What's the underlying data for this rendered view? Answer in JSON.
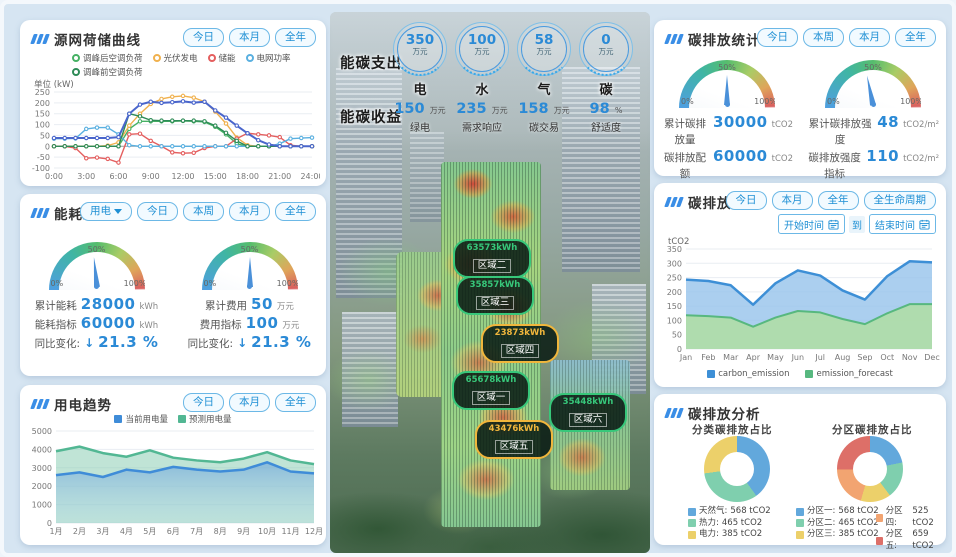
{
  "panels": {
    "curve": {
      "title": "源网荷储曲线",
      "buttons": [
        "今日",
        "本月",
        "全年"
      ],
      "unit_label": "单位 (kW)"
    },
    "energy": {
      "title": "能耗统计",
      "type_select": "用电",
      "buttons": [
        "今日",
        "本周",
        "本月",
        "全年"
      ],
      "gauges": [
        {
          "pct": 46.7,
          "g0": "0%",
          "g50": "50%",
          "g100": "100%",
          "rows": [
            {
              "label": "累计能耗",
              "value": "28000",
              "unit": "kWh"
            },
            {
              "label": "能耗指标",
              "value": "60000",
              "unit": "kWh"
            },
            {
              "label": "同比变化:",
              "value": "21.3 %",
              "arrow": "↓"
            }
          ]
        },
        {
          "pct": 50,
          "g0": "0%",
          "g50": "50%",
          "g100": "100%",
          "rows": [
            {
              "label": "累计费用",
              "value": "50",
              "unit": "万元"
            },
            {
              "label": "费用指标",
              "value": "100",
              "unit": "万元"
            },
            {
              "label": "同比变化:",
              "value": "21.3 %",
              "arrow": "↓"
            }
          ]
        }
      ]
    },
    "trend": {
      "title": "用电趋势",
      "buttons": [
        "今日",
        "本月",
        "全年"
      ]
    },
    "carbonStats": {
      "title": "碳排放统计",
      "buttons": [
        "今日",
        "本周",
        "本月",
        "全年"
      ],
      "gauges": [
        {
          "pct": 50,
          "g0": "0%",
          "g50": "50%",
          "g100": "100%",
          "rows": [
            {
              "label": "累计碳排放量",
              "value": "30000",
              "unit": "tCO2"
            },
            {
              "label": "碳排放配额",
              "value": "60000",
              "unit": "tCO2"
            },
            {
              "label": "同比变化:",
              "value": "21.3 %",
              "arrow": "↓"
            }
          ]
        },
        {
          "pct": 43.6,
          "g0": "0%",
          "g50": "50%",
          "g100": "100%",
          "rows": [
            {
              "label": "累计碳排放强度",
              "value": "48",
              "unit": "tCO2/m²"
            },
            {
              "label": "碳排放强度指标",
              "value": "110",
              "unit": "tCO2/m²"
            },
            {
              "label": "同比变化:",
              "value": "21.3 %",
              "arrow": "↓"
            }
          ]
        }
      ]
    },
    "carbonTrend": {
      "title": "碳排放趋势",
      "buttons": [
        "今日",
        "本月",
        "全年",
        "全生命周期"
      ],
      "start_placeholder": "开始时间",
      "to_label": "到",
      "end_placeholder": "结束时间",
      "ylabel": "tCO2"
    },
    "carbonAnalysis": {
      "title": "碳排放分析",
      "donuts": [
        {
          "title": "分类碳排放占比",
          "legend": [
            {
              "label": "天然气:",
              "value": "568 tCO2"
            },
            {
              "label": "热力:",
              "value": "465 tCO2"
            },
            {
              "label": "电力:",
              "value": "385 tCO2"
            }
          ]
        },
        {
          "title": "分区碳排放占比",
          "legend": [
            {
              "label": "分区一:",
              "value": "568 tCO2"
            },
            {
              "label": "分区二:",
              "value": "465 tCO2"
            },
            {
              "label": "分区三:",
              "value": "385 tCO2"
            },
            {
              "label": "分区四:",
              "value": "525 tCO2"
            },
            {
              "label": "分区五:",
              "value": "659 tCO2"
            }
          ]
        }
      ]
    }
  },
  "center": {
    "expense_label": "能碳支出",
    "income_label": "能碳收益",
    "expense_items": [
      {
        "value": "350",
        "unit": "万元",
        "name": "电"
      },
      {
        "value": "100",
        "unit": "万元",
        "name": "水"
      },
      {
        "value": "58",
        "unit": "万元",
        "name": "气"
      },
      {
        "value": "0",
        "unit": "万元",
        "name": "碳"
      }
    ],
    "income_items": [
      {
        "value": "150",
        "unit": "万元",
        "name": "绿电"
      },
      {
        "value": "235",
        "unit": "万元",
        "name": "需求响应"
      },
      {
        "value": "158",
        "unit": "万元",
        "name": "碳交易"
      },
      {
        "value": "98",
        "unit": "%",
        "name": "舒适度"
      }
    ],
    "zones": [
      {
        "name": "区域二",
        "value": "63573kWh"
      },
      {
        "name": "区域三",
        "value": "35857kWh"
      },
      {
        "name": "区域四",
        "value": "23873kWh"
      },
      {
        "name": "区域一",
        "value": "65678kWh"
      },
      {
        "name": "区域六",
        "value": "35448kWh"
      },
      {
        "name": "区域五",
        "value": "43476kWh"
      }
    ]
  },
  "chart_data": [
    {
      "type": "line",
      "title": "源网荷储曲线",
      "ylabel": "单位 (kW)",
      "ylim": [
        -100,
        250
      ],
      "ystep": 50,
      "zero_line": true,
      "xlabels": [
        "0:00",
        "3:00",
        "6:00",
        "9:00",
        "12:00",
        "15:00",
        "18:00",
        "21:00",
        "24:00"
      ],
      "xlabel_idx": [
        0,
        3,
        6,
        9,
        12,
        15,
        18,
        21,
        24
      ],
      "series": [
        {
          "name": "调峰后空调负荷",
          "color": "#46b164",
          "marker": true,
          "values": [
            0,
            0,
            0,
            0,
            0,
            0,
            0,
            80,
            115,
            115,
            115,
            115,
            117,
            115,
            112,
            90,
            55,
            12,
            0,
            0,
            0,
            0,
            0,
            0,
            0
          ]
        },
        {
          "name": "光伏发电",
          "color": "#f0b14e",
          "marker": true,
          "values": [
            0,
            0,
            0,
            0,
            0,
            3,
            18,
            95,
            150,
            195,
            218,
            228,
            232,
            224,
            205,
            160,
            105,
            40,
            5,
            0,
            0,
            0,
            0,
            0,
            0
          ]
        },
        {
          "name": "储能",
          "color": "#e45f5f",
          "marker": true,
          "values": [
            0,
            0,
            -8,
            -55,
            -52,
            -58,
            -75,
            55,
            58,
            25,
            0,
            -28,
            -32,
            -30,
            -8,
            0,
            0,
            35,
            60,
            55,
            50,
            42,
            5,
            0,
            0
          ]
        },
        {
          "name": "电网功率",
          "color": "#5ab0e0",
          "marker": true,
          "values": [
            35,
            35,
            36,
            80,
            86,
            86,
            55,
            5,
            0,
            0,
            0,
            0,
            0,
            0,
            0,
            0,
            0,
            0,
            0,
            0,
            0,
            12,
            35,
            38,
            40
          ]
        },
        {
          "name": "调峰前空调负荷",
          "color": "#2e8b57",
          "marker": true,
          "values": [
            0,
            0,
            0,
            0,
            0,
            0,
            0,
            150,
            138,
            120,
            118,
            118,
            118,
            118,
            115,
            95,
            62,
            25,
            0,
            0,
            0,
            0,
            0,
            0,
            0
          ]
        },
        {
          "name": "",
          "color": "#4a66cc",
          "marker": true,
          "w": 2,
          "values": [
            38,
            38,
            38,
            38,
            38,
            38,
            42,
            150,
            192,
            205,
            200,
            203,
            207,
            201,
            205,
            165,
            132,
            95,
            60,
            28,
            8,
            0,
            0,
            0,
            0
          ]
        }
      ]
    },
    {
      "type": "area",
      "title": "用电趋势",
      "ylim": [
        0,
        5000
      ],
      "ystep": 1000,
      "xlabels": [
        "1月",
        "2月",
        "3月",
        "4月",
        "5月",
        "6月",
        "7月",
        "8月",
        "9月",
        "10月",
        "11月",
        "12月"
      ],
      "xlabel_idx": [
        0,
        1,
        2,
        3,
        4,
        5,
        6,
        7,
        8,
        9,
        10,
        11
      ],
      "series": [
        {
          "name": "预测用电量",
          "color": "#52b793",
          "w": 2.5,
          "fill": "rgba(140,205,180,0.55)",
          "values": [
            3900,
            4150,
            3800,
            3600,
            3950,
            3550,
            3400,
            3300,
            3500,
            3850,
            3400,
            3200
          ]
        },
        {
          "name": "当前用电量",
          "color": "#3f8cd8",
          "w": 2.5,
          "fill": [
            "rgba(110,165,220,0.65)",
            "rgba(170,210,240,0.15)"
          ],
          "values": [
            2600,
            2750,
            2500,
            2900,
            2750,
            3050,
            2900,
            2800,
            2900,
            3300,
            2800,
            2700
          ]
        }
      ]
    },
    {
      "type": "area",
      "title": "碳排放趋势",
      "ylabel": "tCO2",
      "ylim": [
        0,
        350
      ],
      "ystep": 50,
      "xlabels": [
        "Jan",
        "Feb",
        "Mar",
        "Apr",
        "May",
        "Jun",
        "Jul",
        "Aug",
        "Sep",
        "Oct",
        "Nov",
        "Dec"
      ],
      "xlabel_idx": [
        0,
        1,
        2,
        3,
        4,
        5,
        6,
        7,
        8,
        9,
        10,
        11
      ],
      "series": [
        {
          "name": "carbon_emission",
          "color": "#3d8fd6",
          "w": 2.5,
          "fill": "rgba(150,195,235,0.8)",
          "values": [
            243,
            238,
            223,
            155,
            230,
            275,
            257,
            205,
            173,
            255,
            307,
            303
          ]
        },
        {
          "name": "emission_forecast",
          "color": "#57b87f",
          "w": 2,
          "fill": "rgba(175,220,170,0.95)",
          "values": [
            118,
            115,
            110,
            78,
            110,
            133,
            128,
            105,
            87,
            125,
            157,
            157
          ]
        }
      ]
    },
    {
      "type": "pie",
      "title": "分类碳排放占比",
      "labels": [
        "天然气",
        "热力",
        "电力"
      ],
      "values": [
        568,
        465,
        385
      ],
      "colors": [
        "#62a8dc",
        "#7fcfae",
        "#ecd06a"
      ]
    },
    {
      "type": "pie",
      "title": "分区碳排放占比",
      "labels": [
        "分区一",
        "分区二",
        "分区三",
        "分区四",
        "分区五"
      ],
      "values": [
        568,
        465,
        385,
        525,
        659
      ],
      "colors": [
        "#62a8dc",
        "#7fcfae",
        "#ecd06a",
        "#f2a471",
        "#dd6f68"
      ]
    }
  ]
}
